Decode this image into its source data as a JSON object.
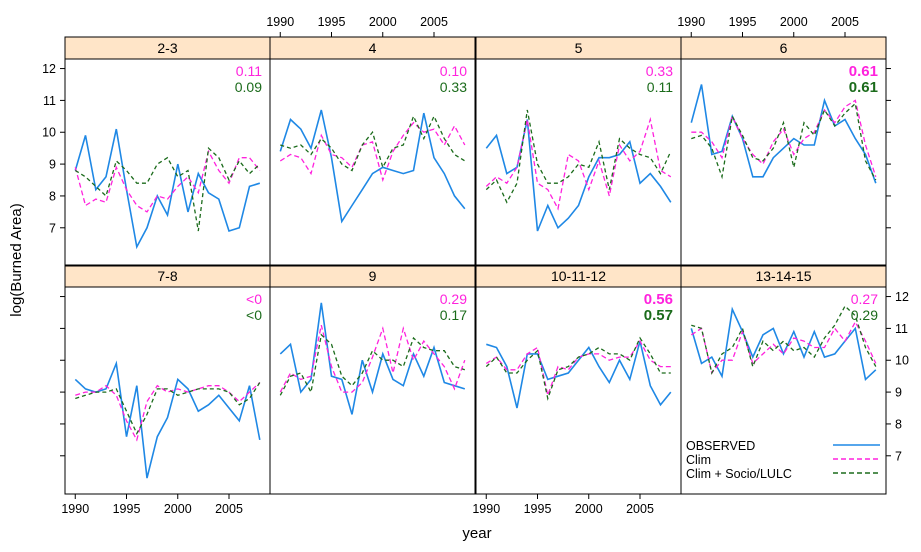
{
  "chart_data": {
    "type": "line",
    "xlabel": "year",
    "ylabel": "log(Burned Area)",
    "x_ticks": [
      1990,
      1995,
      2000,
      2005
    ],
    "y_ticks": [
      7,
      8,
      9,
      10,
      11,
      12
    ],
    "xlim": [
      1989,
      2009
    ],
    "ylim": [
      5.8,
      12.3
    ],
    "years": [
      1990,
      1991,
      1992,
      1993,
      1994,
      1995,
      1996,
      1997,
      1998,
      1999,
      2000,
      2001,
      2002,
      2003,
      2004,
      2005,
      2006,
      2007,
      2008
    ],
    "legend": {
      "placement": "bottom-right",
      "entries": [
        {
          "label": "OBSERVED",
          "color": "#1f88e5",
          "dash": "solid"
        },
        {
          "label": "Clim",
          "color": "#ff22dd",
          "dash": "dashed"
        },
        {
          "label": "Clim + Socio/LULC",
          "color": "#1b6b1b",
          "dash": "dashed"
        }
      ]
    },
    "colors": {
      "observed": "#1f88e5",
      "clim": "#ff22dd",
      "socio": "#1b6b1b",
      "strip": "#ffe5c8"
    },
    "panels": [
      {
        "name": "7-8",
        "row": 0,
        "col": 0,
        "score_clim": "<0",
        "score_socio": "<0",
        "bold": false,
        "observed": [
          9.4,
          9.1,
          9.0,
          9.1,
          9.9,
          7.6,
          9.2,
          6.3,
          7.6,
          8.2,
          9.4,
          9.1,
          8.4,
          8.6,
          8.9,
          8.5,
          8.1,
          9.2,
          7.5
        ],
        "clim": [
          8.9,
          9.0,
          9.0,
          9.2,
          8.9,
          8.1,
          7.5,
          8.7,
          9.2,
          9.0,
          9.1,
          9.0,
          9.1,
          9.2,
          9.2,
          9.0,
          8.7,
          9.0,
          9.3
        ],
        "socio": [
          8.8,
          8.9,
          9.0,
          9.0,
          9.1,
          8.4,
          7.7,
          8.3,
          9.1,
          9.1,
          8.9,
          9.0,
          9.1,
          9.1,
          9.1,
          9.0,
          8.6,
          8.8,
          9.3
        ]
      },
      {
        "name": "9",
        "row": 0,
        "col": 1,
        "score_clim": "0.29",
        "score_socio": "0.17",
        "bold": false,
        "observed": [
          10.2,
          10.5,
          9.0,
          9.4,
          11.8,
          9.5,
          9.4,
          8.3,
          10.0,
          9.0,
          10.2,
          9.4,
          9.2,
          10.2,
          9.5,
          10.4,
          9.3,
          9.2,
          9.1
        ],
        "clim": [
          9.0,
          9.6,
          9.4,
          9.5,
          11.1,
          9.8,
          9.0,
          9.0,
          9.3,
          10.1,
          11.0,
          9.6,
          11.0,
          10.0,
          10.6,
          10.2,
          9.8,
          9.1,
          10.0
        ],
        "socio": [
          8.9,
          9.5,
          9.6,
          9.0,
          10.8,
          10.5,
          9.5,
          9.2,
          9.6,
          10.3,
          10.0,
          10.0,
          9.8,
          10.7,
          10.4,
          10.3,
          10.3,
          9.8,
          9.7
        ]
      },
      {
        "name": "10-11-12",
        "row": 0,
        "col": 2,
        "score_clim": "0.56",
        "score_socio": "0.57",
        "bold": true,
        "observed": [
          10.5,
          10.4,
          9.8,
          8.5,
          10.2,
          10.2,
          9.4,
          9.5,
          9.6,
          10.0,
          10.4,
          9.8,
          9.3,
          10.0,
          9.4,
          10.6,
          9.2,
          8.6,
          9.0
        ],
        "clim": [
          9.9,
          10.1,
          9.7,
          9.7,
          10.2,
          10.4,
          8.9,
          9.8,
          9.7,
          10.1,
          10.2,
          10.2,
          10.0,
          10.1,
          10.1,
          10.6,
          10.0,
          9.8,
          9.8
        ],
        "socio": [
          9.8,
          10.1,
          9.6,
          9.6,
          10.0,
          10.3,
          8.8,
          9.7,
          9.8,
          10.1,
          10.2,
          10.4,
          10.2,
          10.2,
          10.0,
          10.7,
          10.2,
          9.6,
          9.6
        ]
      },
      {
        "name": "13-14-15",
        "row": 0,
        "col": 3,
        "score_clim": "0.27",
        "score_socio": "0.29",
        "bold": false,
        "observed": [
          11.0,
          9.9,
          10.1,
          9.5,
          11.6,
          10.9,
          10.1,
          10.8,
          11.0,
          10.2,
          10.9,
          10.1,
          10.9,
          10.1,
          10.2,
          10.6,
          11.0,
          9.4,
          9.7
        ],
        "clim": [
          10.8,
          11.0,
          9.6,
          10.0,
          10.0,
          10.9,
          9.9,
          10.2,
          10.5,
          10.2,
          10.7,
          10.6,
          10.4,
          10.4,
          11.0,
          10.6,
          11.2,
          10.6,
          9.9
        ],
        "socio": [
          11.1,
          11.0,
          9.6,
          10.2,
          10.4,
          11.0,
          9.8,
          10.6,
          10.3,
          10.6,
          10.3,
          10.4,
          10.1,
          10.7,
          11.1,
          11.7,
          11.4,
          10.4,
          9.8
        ]
      },
      {
        "name": "2-3",
        "row": 1,
        "col": 0,
        "score_clim": "0.11",
        "score_socio": "0.09",
        "bold": false,
        "observed": [
          8.8,
          9.9,
          8.2,
          8.6,
          10.1,
          8.2,
          6.4,
          7.0,
          8.0,
          7.4,
          9.0,
          7.5,
          8.7,
          8.1,
          7.9,
          6.9,
          7.0,
          8.3,
          8.4
        ],
        "clim": [
          8.9,
          7.7,
          7.9,
          7.8,
          8.9,
          8.2,
          7.7,
          7.5,
          8.0,
          7.9,
          8.3,
          8.6,
          8.1,
          9.4,
          8.8,
          8.4,
          9.2,
          9.2,
          8.8
        ],
        "socio": [
          8.8,
          8.6,
          8.3,
          8.0,
          9.1,
          8.8,
          8.4,
          8.4,
          9.0,
          9.2,
          8.6,
          8.8,
          6.9,
          9.5,
          9.2,
          8.5,
          9.1,
          8.7,
          9.0
        ]
      },
      {
        "name": "4",
        "row": 1,
        "col": 1,
        "score_clim": "0.10",
        "score_socio": "0.33",
        "bold": false,
        "observed": [
          9.4,
          10.4,
          10.1,
          9.5,
          10.7,
          9.2,
          7.2,
          7.7,
          8.2,
          8.7,
          8.9,
          8.8,
          8.7,
          8.8,
          10.6,
          9.2,
          8.7,
          8.0,
          7.6
        ],
        "clim": [
          9.1,
          9.3,
          9.2,
          8.7,
          9.9,
          9.3,
          9.2,
          8.9,
          9.6,
          9.7,
          8.5,
          9.4,
          9.9,
          10.3,
          10.0,
          10.1,
          9.6,
          10.2,
          9.6
        ],
        "socio": [
          9.6,
          9.5,
          9.6,
          9.3,
          9.8,
          9.5,
          9.0,
          8.8,
          9.6,
          10.0,
          8.9,
          9.5,
          9.6,
          10.5,
          9.8,
          10.5,
          9.8,
          9.3,
          9.1
        ]
      },
      {
        "name": "5",
        "row": 1,
        "col": 2,
        "score_clim": "0.33",
        "score_socio": "0.11",
        "bold": false,
        "observed": [
          9.5,
          9.9,
          8.7,
          8.9,
          10.4,
          6.9,
          7.7,
          7.0,
          7.3,
          7.7,
          8.6,
          9.2,
          9.2,
          9.3,
          9.7,
          8.4,
          8.7,
          8.3,
          7.8
        ],
        "clim": [
          8.3,
          8.6,
          8.4,
          8.9,
          10.4,
          8.4,
          8.2,
          7.6,
          9.3,
          9.1,
          8.2,
          9.1,
          8.0,
          9.6,
          9.1,
          9.4,
          10.4,
          8.8,
          8.6
        ],
        "socio": [
          8.2,
          8.5,
          7.8,
          8.4,
          10.7,
          9.0,
          8.4,
          8.4,
          8.6,
          9.0,
          8.9,
          9.7,
          8.2,
          9.8,
          9.5,
          9.3,
          9.2,
          8.7,
          9.4
        ]
      },
      {
        "name": "6",
        "row": 1,
        "col": 3,
        "score_clim": "0.61",
        "score_socio": "0.61",
        "bold": true,
        "observed": [
          10.3,
          11.5,
          9.3,
          9.4,
          10.5,
          9.8,
          8.6,
          8.6,
          9.2,
          9.5,
          9.8,
          9.6,
          9.6,
          11.0,
          10.2,
          10.4,
          9.8,
          9.3,
          8.4
        ],
        "clim": [
          10.0,
          10.0,
          9.7,
          9.2,
          10.5,
          9.8,
          9.3,
          9.0,
          9.7,
          10.1,
          9.3,
          9.8,
          10.0,
          10.7,
          10.3,
          10.8,
          11.0,
          9.6,
          8.6
        ],
        "socio": [
          9.8,
          9.9,
          9.5,
          8.6,
          10.5,
          9.9,
          9.2,
          9.1,
          9.5,
          10.3,
          8.9,
          10.3,
          9.9,
          10.7,
          10.2,
          10.6,
          10.9,
          9.1,
          8.5
        ]
      }
    ]
  }
}
